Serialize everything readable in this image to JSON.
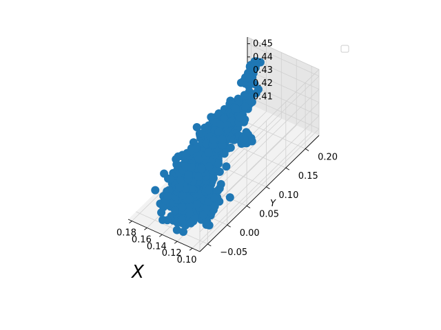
{
  "chart_data": {
    "type": "scatter",
    "projection": "3d",
    "xlabel": "X",
    "ylabel": "Y",
    "zlabel": "",
    "xlim": [
      0.09,
      0.185
    ],
    "ylim": [
      -0.07,
      0.235
    ],
    "zlim": [
      0.405,
      0.455
    ],
    "xticks": [
      "0.10",
      "0.12",
      "0.14",
      "0.16",
      "0.18"
    ],
    "yticks": [
      "−0.05",
      "0.00",
      "0.05",
      "0.10",
      "0.15",
      "0.20"
    ],
    "zticks": [
      "0.41",
      "0.42",
      "0.43",
      "0.44",
      "0.45"
    ],
    "grid": true,
    "legend": {
      "placement": "upper right",
      "entries": []
    },
    "series": [
      {
        "color": "#1f77b4",
        "marker": "o",
        "clusters": [
          {
            "x": 0.125,
            "y": -0.015,
            "z": 0.415,
            "sx": 0.011,
            "sy": 0.02,
            "sz": 0.002,
            "n": 260
          },
          {
            "x": 0.145,
            "y": 0.01,
            "z": 0.418,
            "sx": 0.01,
            "sy": 0.025,
            "sz": 0.002,
            "n": 260
          },
          {
            "x": 0.16,
            "y": 0.07,
            "z": 0.419,
            "sx": 0.008,
            "sy": 0.03,
            "sz": 0.003,
            "n": 200
          },
          {
            "x": 0.168,
            "y": 0.13,
            "z": 0.42,
            "sx": 0.006,
            "sy": 0.025,
            "sz": 0.003,
            "n": 130
          },
          {
            "x": 0.172,
            "y": 0.18,
            "z": 0.42,
            "sx": 0.004,
            "sy": 0.02,
            "sz": 0.002,
            "n": 60
          },
          {
            "x": 0.148,
            "y": 0.1,
            "z": 0.427,
            "sx": 0.004,
            "sy": 0.012,
            "sz": 0.002,
            "n": 45
          },
          {
            "x": 0.132,
            "y": 0.12,
            "z": 0.425,
            "sx": 0.005,
            "sy": 0.006,
            "sz": 0.001,
            "n": 30
          },
          {
            "x": 0.145,
            "y": 0.14,
            "z": 0.432,
            "sx": 0.002,
            "sy": 0.004,
            "sz": 0.003,
            "n": 20
          },
          {
            "x": 0.162,
            "y": 0.205,
            "z": 0.447,
            "sx": 0.002,
            "sy": 0.006,
            "sz": 0.001,
            "n": 35
          },
          {
            "x": 0.165,
            "y": 0.2,
            "z": 0.438,
            "sx": 0.002,
            "sy": 0.006,
            "sz": 0.001,
            "n": 20
          },
          {
            "x": 0.16,
            "y": 0.19,
            "z": 0.425,
            "sx": 0.002,
            "sy": 0.005,
            "sz": 0.001,
            "n": 15
          }
        ]
      }
    ]
  }
}
